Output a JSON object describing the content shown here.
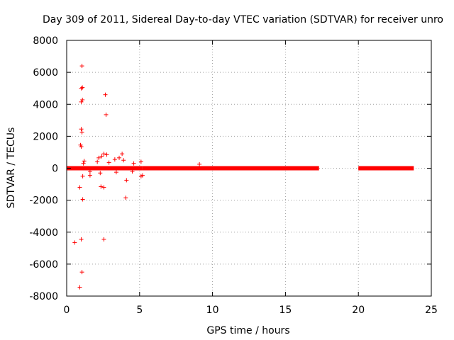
{
  "chart_data": {
    "type": "scatter",
    "title": "Day 309 of 2011, Sidereal Day-to-day VTEC variation (SDTVAR) for receiver unro",
    "xlabel": "GPS time / hours",
    "ylabel": "SDTVAR / TECUs",
    "xlim": [
      0,
      25
    ],
    "ylim": [
      -8000,
      8000
    ],
    "x_ticks": [
      "0",
      "5",
      "10",
      "15",
      "20",
      "25"
    ],
    "y_ticks": [
      "8000",
      "6000",
      "4000",
      "2000",
      "0",
      "-2000",
      "-4000",
      "-6000",
      "-8000"
    ],
    "grid": true,
    "legend": "none",
    "marker": "+",
    "series_color": "#ff0000",
    "dense_bands": [
      {
        "x_start": 0.0,
        "x_end": 5.2,
        "y": 0
      },
      {
        "x_start": 5.2,
        "x_end": 17.3,
        "y": 0
      },
      {
        "x_start": 20.0,
        "x_end": 23.8,
        "y": 0
      }
    ],
    "points": [
      {
        "x": 1.05,
        "y": 6400
      },
      {
        "x": 1.0,
        "y": 5000
      },
      {
        "x": 1.08,
        "y": 5050
      },
      {
        "x": 2.65,
        "y": 4600
      },
      {
        "x": 1.0,
        "y": 4150
      },
      {
        "x": 1.08,
        "y": 4280
      },
      {
        "x": 2.7,
        "y": 3350
      },
      {
        "x": 1.0,
        "y": 2450
      },
      {
        "x": 1.05,
        "y": 2250
      },
      {
        "x": 0.95,
        "y": 1450
      },
      {
        "x": 1.0,
        "y": 1350
      },
      {
        "x": 2.55,
        "y": 900
      },
      {
        "x": 2.75,
        "y": 850
      },
      {
        "x": 2.4,
        "y": 750
      },
      {
        "x": 2.2,
        "y": 650
      },
      {
        "x": 3.8,
        "y": 900
      },
      {
        "x": 3.6,
        "y": 650
      },
      {
        "x": 3.3,
        "y": 550
      },
      {
        "x": 3.9,
        "y": 500
      },
      {
        "x": 1.2,
        "y": 450
      },
      {
        "x": 1.15,
        "y": 300
      },
      {
        "x": 4.6,
        "y": 300
      },
      {
        "x": 5.1,
        "y": 400
      },
      {
        "x": 9.1,
        "y": 250
      },
      {
        "x": 2.1,
        "y": 400
      },
      {
        "x": 2.9,
        "y": 350
      },
      {
        "x": 1.6,
        "y": -200
      },
      {
        "x": 1.1,
        "y": -500
      },
      {
        "x": 1.6,
        "y": -450
      },
      {
        "x": 2.3,
        "y": -300
      },
      {
        "x": 3.4,
        "y": -250
      },
      {
        "x": 4.5,
        "y": -200
      },
      {
        "x": 5.1,
        "y": -500
      },
      {
        "x": 5.2,
        "y": -450
      },
      {
        "x": 4.1,
        "y": -750
      },
      {
        "x": 0.9,
        "y": -1200
      },
      {
        "x": 2.35,
        "y": -1150
      },
      {
        "x": 2.55,
        "y": -1200
      },
      {
        "x": 4.05,
        "y": -1850
      },
      {
        "x": 1.1,
        "y": -1950
      },
      {
        "x": 2.55,
        "y": -4450
      },
      {
        "x": 1.0,
        "y": -4450
      },
      {
        "x": 0.55,
        "y": -4650
      },
      {
        "x": 1.05,
        "y": -6500
      },
      {
        "x": 0.9,
        "y": -7450
      }
    ]
  }
}
